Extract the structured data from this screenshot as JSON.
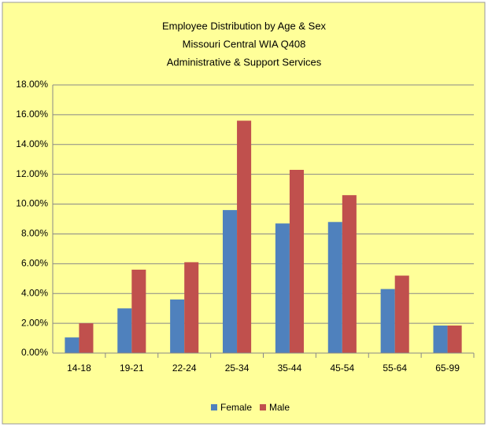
{
  "chart_data": {
    "type": "bar",
    "title": [
      "Employee Distribution by Age & Sex",
      "Missouri Central WIA Q408",
      "Administrative & Support Services"
    ],
    "categories": [
      "14-18",
      "19-21",
      "22-24",
      "25-34",
      "35-44",
      "45-54",
      "55-64",
      "65-99"
    ],
    "series": [
      {
        "name": "Female",
        "color": "#4f81bd",
        "values": [
          1.05,
          3.0,
          3.6,
          9.6,
          8.7,
          8.8,
          4.3,
          1.85
        ]
      },
      {
        "name": "Male",
        "color": "#c0504d",
        "values": [
          2.0,
          5.6,
          6.1,
          15.6,
          12.3,
          10.6,
          5.2,
          1.85
        ]
      }
    ],
    "ylim": [
      0,
      18
    ],
    "yticks": [
      {
        "value": 0,
        "label": "0.00%"
      },
      {
        "value": 2,
        "label": "2.00%"
      },
      {
        "value": 4,
        "label": "4.00%"
      },
      {
        "value": 6,
        "label": "6.00%"
      },
      {
        "value": 8,
        "label": "8.00%"
      },
      {
        "value": 10,
        "label": "10.00%"
      },
      {
        "value": 12,
        "label": "12.00%"
      },
      {
        "value": 14,
        "label": "14.00%"
      },
      {
        "value": 16,
        "label": "16.00%"
      },
      {
        "value": 18,
        "label": "18.00%"
      }
    ],
    "grid": true,
    "legend": "bottom"
  }
}
